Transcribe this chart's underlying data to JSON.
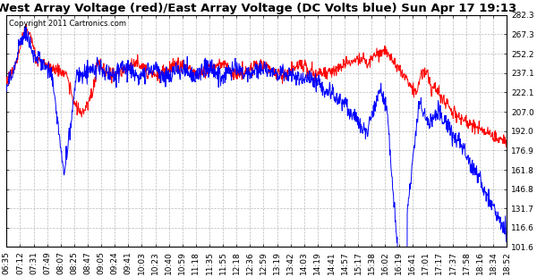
{
  "title": "West Array Voltage (red)/East Array Voltage (DC Volts blue) Sun Apr 17 19:13",
  "copyright": "Copyright 2011 Cartronics.com",
  "yticks": [
    101.6,
    116.6,
    131.7,
    146.8,
    161.8,
    176.9,
    192.0,
    207.0,
    222.1,
    237.1,
    252.2,
    267.3,
    282.3
  ],
  "xtick_labels": [
    "06:35",
    "07:12",
    "07:31",
    "07:49",
    "08:07",
    "08:25",
    "08:47",
    "09:05",
    "09:24",
    "09:41",
    "10:03",
    "10:23",
    "10:40",
    "10:59",
    "11:18",
    "11:35",
    "11:55",
    "12:18",
    "12:36",
    "12:59",
    "13:19",
    "13:42",
    "14:03",
    "14:19",
    "14:41",
    "14:57",
    "15:17",
    "15:38",
    "16:02",
    "16:19",
    "16:41",
    "17:01",
    "17:17",
    "17:37",
    "17:58",
    "18:16",
    "18:34",
    "18:52"
  ],
  "ymin": 101.6,
  "ymax": 282.3,
  "bg_color": "#ffffff",
  "grid_color": "#bbbbbb",
  "red_color": "#ff0000",
  "blue_color": "#0000ff",
  "title_fontsize": 9.5,
  "tick_fontsize": 6.5,
  "copyright_fontsize": 6
}
